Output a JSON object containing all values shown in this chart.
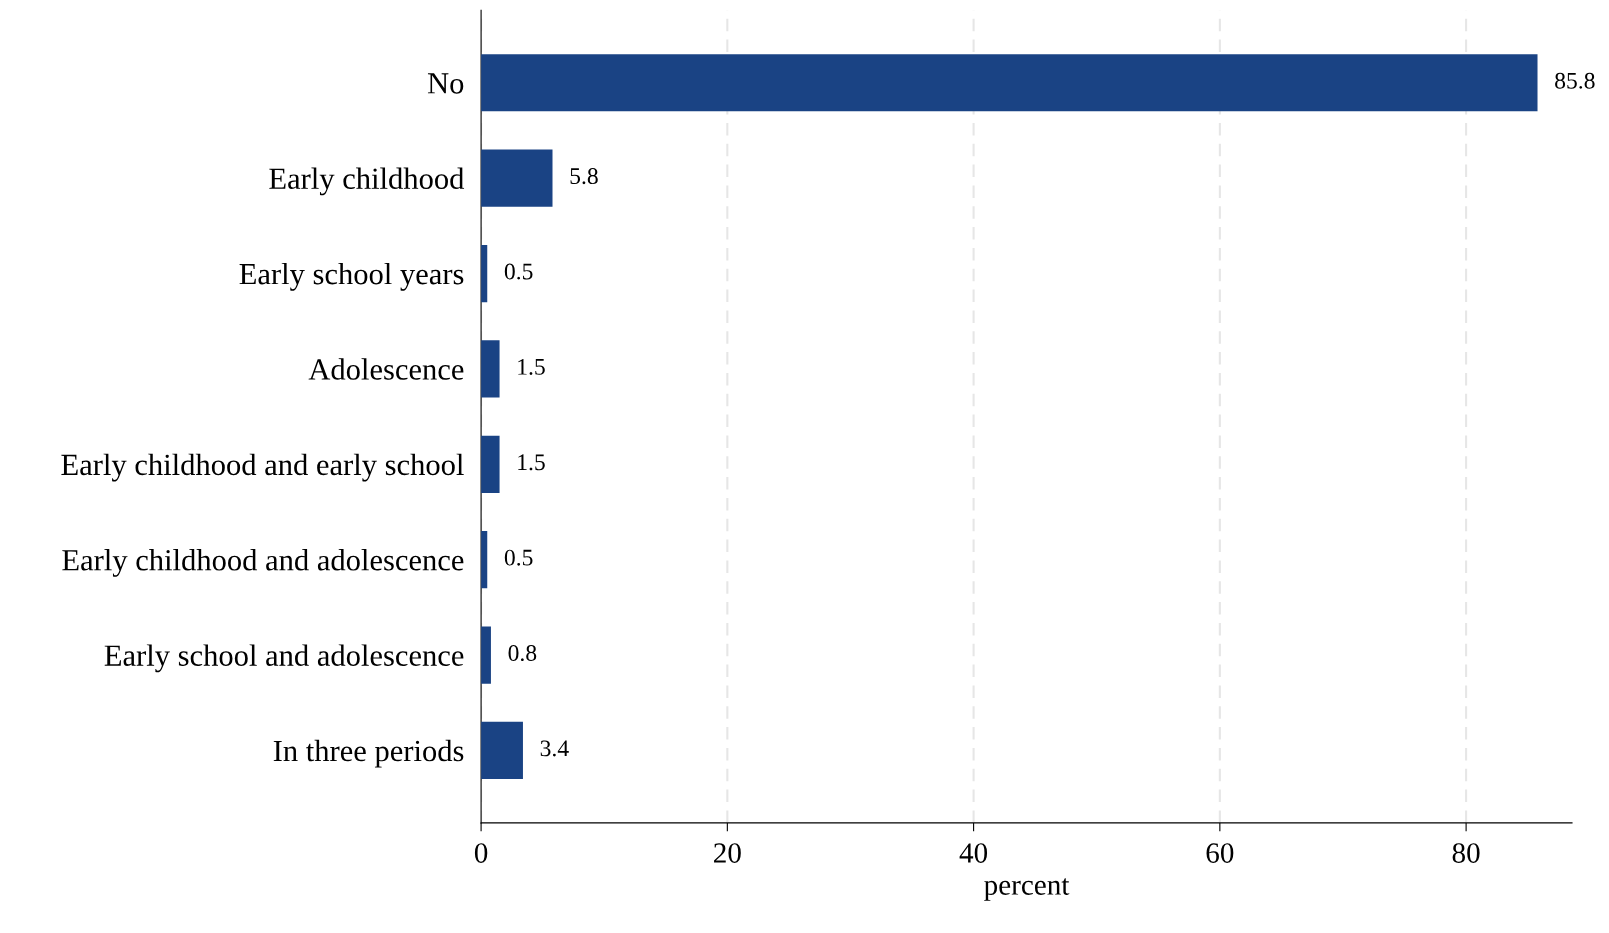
{
  "chart_data": {
    "type": "bar",
    "orientation": "horizontal",
    "xlabel": "percent",
    "categories": [
      "No",
      "Early childhood",
      "Early school years",
      "Adolescence",
      "Early childhood and early school",
      "Early childhood and adolescence",
      "Early school and adolescence",
      "In three periods"
    ],
    "values": [
      85.8,
      5.8,
      0.5,
      1.5,
      1.5,
      0.5,
      0.8,
      3.4
    ],
    "color": "#1a4384",
    "xlim": [
      0,
      88.6
    ],
    "xticks": [
      0,
      20,
      40,
      60,
      80
    ],
    "grid": "x",
    "data_labels": true
  }
}
